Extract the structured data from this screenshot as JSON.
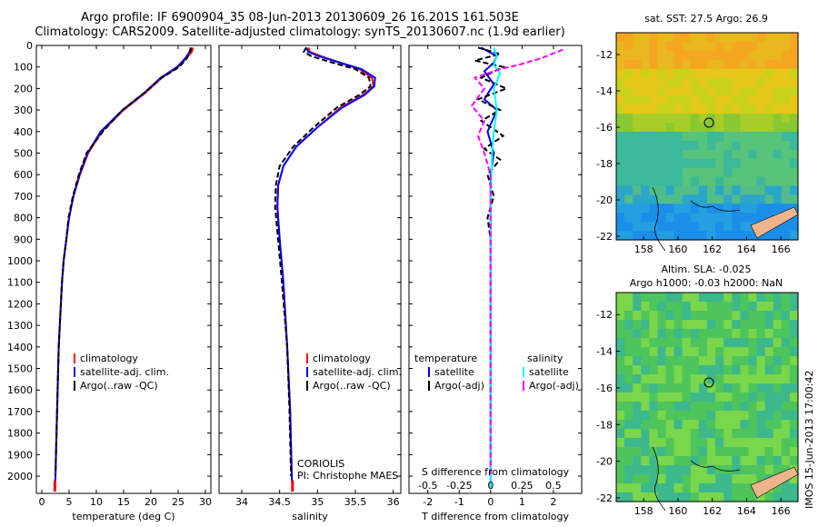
{
  "header": {
    "title_line1": "Argo profile: IF 6900904_35 08-Jun-2013 20130609_26 16.201S 161.503E",
    "title_line2": "Climatology: CARS2009. Satellite-adjusted climatology: synTS_20130607.nc (1.9d earlier)"
  },
  "stamp": "IMOS 15-Jun-2013 17:00:42",
  "colors": {
    "climatology": "#ff0000",
    "satellite": "#0000ff",
    "argo": "#000000",
    "sat_salinity": "#00ffff",
    "argo_salinity": "#ff00ff"
  },
  "chart_data": [
    {
      "type": "line",
      "id": "temperature",
      "xlabel": "temperature (deg C)",
      "ylabel": "",
      "xlim": [
        -1,
        31
      ],
      "ylim": [
        2080,
        0
      ],
      "xticks": [
        "0",
        "5",
        "10",
        "15",
        "20",
        "25",
        "30"
      ],
      "yticks": [
        "0",
        "100",
        "200",
        "300",
        "400",
        "500",
        "600",
        "700",
        "800",
        "900",
        "1000",
        "1100",
        "1200",
        "1300",
        "1400",
        "1500",
        "1600",
        "1700",
        "1800",
        "1900",
        "2000"
      ],
      "legend": [
        "climatology",
        "satellite-adj. clim.",
        "Argo(..raw -QC)"
      ],
      "series": [
        {
          "name": "climatology",
          "color": "#ff0000",
          "dash": "none",
          "points": [
            [
              27.7,
              10
            ],
            [
              27.5,
              30
            ],
            [
              26.5,
              60
            ],
            [
              25,
              100
            ],
            [
              22,
              150
            ],
            [
              19,
              220
            ],
            [
              15,
              300
            ],
            [
              11,
              400
            ],
            [
              8.5,
              500
            ],
            [
              7,
              600
            ],
            [
              5.8,
              700
            ],
            [
              5,
              800
            ],
            [
              4.5,
              900
            ],
            [
              4,
              1000
            ],
            [
              3.7,
              1100
            ],
            [
              3.5,
              1200
            ],
            [
              3.3,
              1300
            ],
            [
              3.1,
              1400
            ],
            [
              3,
              1500
            ],
            [
              2.9,
              1600
            ],
            [
              2.8,
              1700
            ],
            [
              2.7,
              1800
            ],
            [
              2.6,
              1900
            ],
            [
              2.5,
              2000
            ],
            [
              2.4,
              2060
            ]
          ]
        },
        {
          "name": "satellite-adj. clim.",
          "color": "#0000ff",
          "dash": "none",
          "points": [
            [
              27.3,
              10
            ],
            [
              27.1,
              30
            ],
            [
              26.3,
              60
            ],
            [
              24.8,
              100
            ],
            [
              21.8,
              150
            ],
            [
              18.8,
              220
            ],
            [
              14.8,
              300
            ],
            [
              10.8,
              400
            ],
            [
              8.4,
              500
            ],
            [
              6.9,
              600
            ],
            [
              5.8,
              700
            ],
            [
              5,
              800
            ],
            [
              4.5,
              900
            ],
            [
              4,
              1000
            ],
            [
              3.7,
              1100
            ],
            [
              3.5,
              1200
            ],
            [
              3.3,
              1300
            ],
            [
              3.1,
              1400
            ],
            [
              3,
              1500
            ],
            [
              2.9,
              1600
            ],
            [
              2.8,
              1700
            ],
            [
              2.7,
              1800
            ],
            [
              2.6,
              1900
            ],
            [
              2.5,
              2000
            ],
            [
              2.4,
              2060
            ]
          ]
        },
        {
          "name": "Argo(..raw -QC)",
          "color": "#000000",
          "dash": "6,3",
          "points": [
            [
              27.4,
              10
            ],
            [
              27.2,
              30
            ],
            [
              26.6,
              60
            ],
            [
              25.2,
              100
            ],
            [
              22,
              150
            ],
            [
              18.8,
              220
            ],
            [
              14.8,
              300
            ],
            [
              11.2,
              400
            ],
            [
              8.2,
              500
            ],
            [
              6.8,
              600
            ],
            [
              5.7,
              700
            ],
            [
              4.9,
              800
            ],
            [
              4.5,
              900
            ],
            [
              4,
              1000
            ],
            [
              3.7,
              1100
            ],
            [
              3.5,
              1200
            ],
            [
              3.3,
              1300
            ],
            [
              3.1,
              1400
            ],
            [
              3,
              1500
            ],
            [
              2.9,
              1600
            ],
            [
              2.8,
              1700
            ],
            [
              2.7,
              1800
            ],
            [
              2.6,
              1900
            ],
            [
              2.5,
              2000
            ]
          ]
        }
      ]
    },
    {
      "type": "line",
      "id": "salinity",
      "xlabel": "salinity",
      "ylabel": "",
      "xlim": [
        33.7,
        36.1
      ],
      "ylim": [
        2080,
        0
      ],
      "xticks": [
        "34",
        "34.5",
        "35",
        "35.5",
        "36"
      ],
      "legend": [
        "climatology",
        "satellite-adj. clim.",
        "Argo(..raw -QC)"
      ],
      "annotation": [
        "CORIOLIS",
        "PI: Christophe MAES"
      ],
      "series": [
        {
          "name": "climatology",
          "color": "#ff0000",
          "dash": "none",
          "points": [
            [
              34.88,
              10
            ],
            [
              34.9,
              30
            ],
            [
              35.05,
              50
            ],
            [
              35.3,
              80
            ],
            [
              35.55,
              110
            ],
            [
              35.72,
              150
            ],
            [
              35.74,
              190
            ],
            [
              35.6,
              230
            ],
            [
              35.3,
              290
            ],
            [
              35.0,
              380
            ],
            [
              34.72,
              470
            ],
            [
              34.55,
              560
            ],
            [
              34.48,
              650
            ],
            [
              34.47,
              750
            ],
            [
              34.5,
              900
            ],
            [
              34.55,
              1100
            ],
            [
              34.6,
              1400
            ],
            [
              34.64,
              1700
            ],
            [
              34.66,
              2000
            ],
            [
              34.67,
              2060
            ]
          ]
        },
        {
          "name": "satellite-adj. clim.",
          "color": "#0000ff",
          "dash": "none",
          "points": [
            [
              34.85,
              10
            ],
            [
              34.88,
              30
            ],
            [
              35.02,
              50
            ],
            [
              35.3,
              80
            ],
            [
              35.58,
              110
            ],
            [
              35.76,
              150
            ],
            [
              35.75,
              190
            ],
            [
              35.62,
              230
            ],
            [
              35.32,
              290
            ],
            [
              35.0,
              380
            ],
            [
              34.72,
              470
            ],
            [
              34.55,
              560
            ],
            [
              34.48,
              650
            ],
            [
              34.47,
              750
            ],
            [
              34.5,
              900
            ],
            [
              34.55,
              1100
            ],
            [
              34.6,
              1400
            ],
            [
              34.64,
              1700
            ],
            [
              34.66,
              2000
            ],
            [
              34.67,
              2060
            ]
          ]
        },
        {
          "name": "Argo(..raw -QC)",
          "color": "#000000",
          "dash": "6,3",
          "points": [
            [
              34.85,
              10
            ],
            [
              34.82,
              30
            ],
            [
              34.92,
              50
            ],
            [
              35.2,
              80
            ],
            [
              35.5,
              110
            ],
            [
              35.68,
              150
            ],
            [
              35.7,
              190
            ],
            [
              35.55,
              230
            ],
            [
              35.25,
              290
            ],
            [
              34.95,
              380
            ],
            [
              34.68,
              470
            ],
            [
              34.5,
              560
            ],
            [
              34.45,
              650
            ],
            [
              34.44,
              750
            ],
            [
              34.48,
              900
            ],
            [
              34.53,
              1100
            ],
            [
              34.6,
              1400
            ],
            [
              34.63,
              1700
            ],
            [
              34.65,
              2000
            ]
          ]
        }
      ]
    },
    {
      "type": "line",
      "id": "differences",
      "xlabel": "T difference from climatology",
      "xlabel2": "S difference from climatology",
      "xlim": [
        -2.6,
        2.9
      ],
      "ylim": [
        2080,
        0
      ],
      "xticks": [
        "-2",
        "-1",
        "0",
        "1",
        "2"
      ],
      "xticks_s": [
        "-0.5",
        "-0.25",
        "0",
        "0.25",
        "0.5"
      ],
      "legend_headers": [
        "temperature",
        "salinity"
      ],
      "legend": [
        "satellite",
        "Argo(-adj)",
        "satellite",
        "Argo(-adj)"
      ],
      "series": [
        {
          "name": "satellite",
          "group": "temperature",
          "color": "#0000ff",
          "dash": "none",
          "points": [
            [
              -0.3,
              10
            ],
            [
              0.2,
              50
            ],
            [
              0.1,
              80
            ],
            [
              -0.2,
              120
            ],
            [
              0.1,
              180
            ],
            [
              -0.2,
              250
            ],
            [
              0.2,
              300
            ],
            [
              -0.1,
              400
            ],
            [
              0.1,
              500
            ],
            [
              0,
              600
            ],
            [
              0,
              800
            ],
            [
              0,
              2060
            ]
          ]
        },
        {
          "name": "Argo(-adj)",
          "group": "temperature",
          "color": "#000000",
          "dash": "6,3",
          "points": [
            [
              -0.4,
              10
            ],
            [
              0.3,
              40
            ],
            [
              -0.5,
              70
            ],
            [
              0.4,
              100
            ],
            [
              -0.3,
              150
            ],
            [
              0.5,
              200
            ],
            [
              -0.4,
              250
            ],
            [
              0.3,
              300
            ],
            [
              -0.3,
              350
            ],
            [
              0.4,
              420
            ],
            [
              -0.2,
              480
            ],
            [
              0.3,
              530
            ],
            [
              -0.1,
              600
            ],
            [
              0.1,
              700
            ],
            [
              -0.1,
              800
            ],
            [
              0,
              900
            ],
            [
              0,
              2000
            ]
          ]
        },
        {
          "name": "satellite",
          "group": "salinity",
          "color": "#00ffff",
          "dash": "none",
          "points": [
            [
              0.1,
              10
            ],
            [
              0.2,
              50
            ],
            [
              0.1,
              90
            ],
            [
              0.3,
              130
            ],
            [
              0.1,
              200
            ],
            [
              0.2,
              300
            ],
            [
              0.1,
              400
            ],
            [
              0.05,
              500
            ],
            [
              0,
              700
            ],
            [
              0,
              2060
            ]
          ]
        },
        {
          "name": "Argo(-adj)",
          "group": "salinity",
          "color": "#ff00ff",
          "dash": "6,3",
          "points": [
            [
              2.3,
              20
            ],
            [
              1.6,
              60
            ],
            [
              0.9,
              90
            ],
            [
              0.3,
              110
            ],
            [
              -0.5,
              150
            ],
            [
              -0.2,
              200
            ],
            [
              -0.6,
              280
            ],
            [
              -0.2,
              350
            ],
            [
              -0.4,
              420
            ],
            [
              -0.2,
              500
            ],
            [
              0,
              600
            ],
            [
              0,
              800
            ],
            [
              0,
              2000
            ]
          ]
        }
      ]
    }
  ],
  "maps": [
    {
      "id": "sst",
      "title": "sat. SST: 27.5 Argo: 26.9",
      "xticks": [
        "158",
        "160",
        "162",
        "164",
        "166"
      ],
      "yticks": [
        "-12",
        "-14",
        "-16",
        "-18",
        "-20",
        "-22"
      ]
    },
    {
      "id": "sla",
      "title": "Altim. SLA: -0.025",
      "title2": "Argo h1000: -0.03 h2000: NaN",
      "xticks": [
        "158",
        "160",
        "162",
        "164",
        "166"
      ],
      "yticks": [
        "-12",
        "-14",
        "-16",
        "-18",
        "-20",
        "-22"
      ]
    }
  ]
}
